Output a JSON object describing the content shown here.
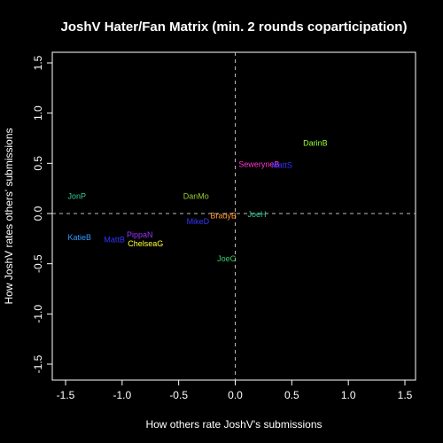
{
  "chart_data": {
    "type": "scatter",
    "title": "JoshV Hater/Fan Matrix (min. 2 rounds coparticipation)",
    "xlabel": "How others rate JoshV's submissions",
    "ylabel": "How JoshV rates others' submissions",
    "xlim": [
      -1.5,
      1.5
    ],
    "ylim": [
      -1.5,
      1.5
    ],
    "x_ticks": [
      -1.5,
      -1.0,
      -0.5,
      0.0,
      0.5,
      1.0,
      1.5
    ],
    "y_ticks": [
      -1.5,
      -1.0,
      -0.5,
      0.0,
      0.5,
      1.0,
      1.5
    ],
    "x_tick_labels": [
      "-1.5",
      "-1.0",
      "-0.5",
      "0.0",
      "0.5",
      "1.0",
      "1.5"
    ],
    "y_tick_labels": [
      "-1.5",
      "-1.0",
      "-0.5",
      "0.0",
      "0.5",
      "1.0",
      "1.5"
    ],
    "reference_lines": {
      "x": 0,
      "y": 0,
      "style": "dashed",
      "color": "#bbbbbb"
    },
    "grid": false,
    "background": "#000000",
    "foreground": "#ffffff",
    "points": [
      {
        "label": "DarinB",
        "x": 0.6,
        "y": 0.7,
        "color": "#99ff33"
      },
      {
        "label": "SeweryneB",
        "x": 0.03,
        "y": 0.49,
        "color": "#ff33cc"
      },
      {
        "label": "MattS",
        "x": 0.32,
        "y": 0.48,
        "color": "#3333ff"
      },
      {
        "label": "JonP",
        "x": -1.48,
        "y": 0.17,
        "color": "#33cc99"
      },
      {
        "label": "DanMo",
        "x": -0.46,
        "y": 0.17,
        "color": "#99cc33"
      },
      {
        "label": "BradyB",
        "x": -0.22,
        "y": -0.02,
        "color": "#ff9933"
      },
      {
        "label": "JoeH",
        "x": 0.11,
        "y": -0.01,
        "color": "#33cc99"
      },
      {
        "label": "MikeD",
        "x": -0.43,
        "y": -0.08,
        "color": "#3333ff"
      },
      {
        "label": "KatieB",
        "x": -1.48,
        "y": -0.24,
        "color": "#3399ff"
      },
      {
        "label": "MattB",
        "x": -1.16,
        "y": -0.26,
        "color": "#3333ff"
      },
      {
        "label": "PippaN",
        "x": -0.96,
        "y": -0.21,
        "color": "#9933ff"
      },
      {
        "label": "ChelseaG",
        "x": -0.95,
        "y": -0.3,
        "color": "#ffff33"
      },
      {
        "label": "JoeC",
        "x": -0.16,
        "y": -0.45,
        "color": "#33cc66"
      }
    ]
  }
}
